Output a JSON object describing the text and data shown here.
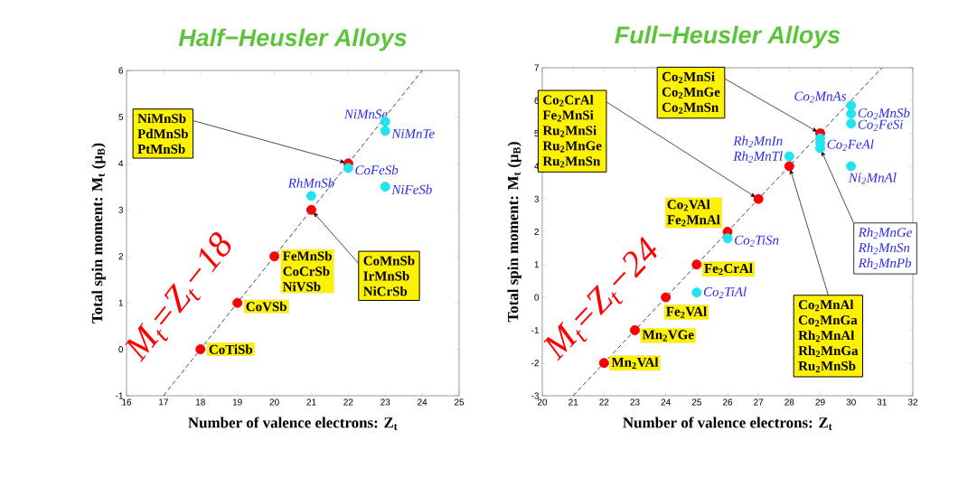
{
  "chart_data": [
    {
      "type": "scatter",
      "title": "Half−Heusler Alloys",
      "xlabel": "Number of valence electrons: Z$_{t}$",
      "ylabel": "Total spin moment: M$_{t}$ (μ$_{B}$)",
      "xlim": [
        16,
        25
      ],
      "ylim": [
        -1,
        6
      ],
      "xticks": [
        16,
        17,
        18,
        19,
        20,
        21,
        22,
        23,
        24,
        25
      ],
      "yticks": [
        -1,
        0,
        1,
        2,
        3,
        4,
        5,
        6
      ],
      "grid": false,
      "marker": "circle",
      "series": [
        {
          "color": "#ff0000",
          "x": [
            18,
            19,
            20,
            21,
            22
          ],
          "values": [
            0,
            1,
            2,
            3,
            4
          ]
        },
        {
          "color": "#22e4ee",
          "x": [
            21,
            22,
            23,
            23,
            23
          ],
          "values": [
            3.3,
            3.9,
            4.9,
            4.7,
            3.5
          ]
        },
        {
          "type": "line",
          "name": "M$_{t}$=Z$_{t}$−18",
          "color": "#444444",
          "line_style": "dashed",
          "marker": "none",
          "x": [
            17,
            24
          ],
          "values": [
            -1,
            6
          ]
        }
      ],
      "annotations": [
        {
          "text": "CoTiSb",
          "x": 18,
          "y": 0
        },
        {
          "text": "CoVSb",
          "x": 19,
          "y": 1
        },
        {
          "text": "FeMnSb",
          "x": 20,
          "y": 2
        },
        {
          "text": "CoCrSb",
          "x": 20,
          "y": 2
        },
        {
          "text": "NiVSb",
          "x": 20,
          "y": 2
        },
        {
          "text": "NiMnSb",
          "x": 22,
          "y": 4
        },
        "PdMnSb",
        "PtMnSb",
        {
          "text": "CoMnSb",
          "x": 21,
          "y": 3
        },
        "IrMnSb",
        "NiCrSb",
        {
          "text": "RhMnSb",
          "x": 21,
          "y": 3.3
        },
        {
          "text": "CoFeSb",
          "x": 22,
          "y": 3.9
        },
        {
          "text": "NiMnSe",
          "x": 23,
          "y": 4.9
        },
        {
          "text": "NiMnTe",
          "x": 23,
          "y": 4.7
        },
        {
          "text": "NiFeSb",
          "x": 23,
          "y": 3.5
        }
      ]
    },
    {
      "type": "scatter",
      "title": "Full−Heusler Alloys",
      "xlabel": "Number of valence electrons: Z$_{t}$",
      "ylabel": "Total spin moment: M$_{t}$ (μ$_{B}$)",
      "xlim": [
        20,
        32
      ],
      "ylim": [
        -3,
        7
      ],
      "xticks": [
        20,
        21,
        22,
        23,
        24,
        25,
        26,
        27,
        28,
        29,
        30,
        31,
        32
      ],
      "yticks": [
        -3,
        -2,
        -1,
        0,
        1,
        2,
        3,
        4,
        5,
        6,
        7
      ],
      "grid": false,
      "marker": "circle",
      "series": [
        {
          "color": "#ff0000",
          "x": [
            22,
            23,
            24,
            25,
            26,
            27,
            28,
            29
          ],
          "values": [
            -2,
            -1,
            0,
            1,
            2,
            3,
            4,
            5
          ]
        },
        {
          "color": "#22e4ee",
          "x": [
            25,
            26,
            28,
            29,
            29,
            29,
            30,
            30,
            30,
            30
          ],
          "values": [
            0.15,
            1.8,
            4.3,
            4.85,
            4.7,
            4.55,
            5.85,
            5.6,
            5.3,
            4.0
          ]
        },
        {
          "type": "line",
          "name": "M$_{t}$=Z$_{t}$−24",
          "color": "#444444",
          "line_style": "dashed",
          "marker": "none",
          "x": [
            21,
            31
          ],
          "values": [
            -3,
            7
          ]
        }
      ],
      "annotations": [
        {
          "text": "Mn$_{2}$VAl",
          "x": 22,
          "y": -2
        },
        {
          "text": "Mn$_{2}$VGe",
          "x": 23,
          "y": -1
        },
        {
          "text": "Fe$_{2}$VAl",
          "x": 24,
          "y": 0
        },
        {
          "text": "Fe$_{2}$CrAl",
          "x": 25,
          "y": 1
        },
        {
          "text": "Co$_{2}$VAl",
          "x": 26,
          "y": 2
        },
        {
          "text": "Fe$_{2}$MnAl",
          "x": 26,
          "y": 2
        },
        {
          "text": "Co$_{2}$CrAl",
          "x": 27,
          "y": 3
        },
        "Fe$_{2}$MnSi",
        "Ru$_{2}$MnSi",
        "Ru$_{2}$MnGe",
        "Ru$_{2}$MnSn",
        {
          "text": "Co$_{2}$MnSi",
          "x": 29,
          "y": 5
        },
        "Co$_{2}$MnGe",
        "Co$_{2}$MnSn",
        {
          "text": "Co$_{2}$MnAl",
          "x": 28,
          "y": 4
        },
        "Co$_{2}$MnGa",
        "Rh$_{2}$MnAl",
        "Rh$_{2}$MnGa",
        "Ru$_{2}$MnSb",
        {
          "text": "Co$_{2}$TiAl",
          "x": 25,
          "y": 0.15
        },
        {
          "text": "Co$_{2}$TiSn",
          "x": 26,
          "y": 1.8
        },
        {
          "text": "Rh$_{2}$MnIn",
          "x": 28,
          "y": 4.3
        },
        {
          "text": "Rh$_{2}$MnTl",
          "x": 28,
          "y": 4.3
        },
        {
          "text": "Co$_{2}$FeAl",
          "x": 29,
          "y": 4.7
        },
        {
          "text": "Rh$_{2}$MnGe",
          "x": 29,
          "y": 4.55
        },
        "Rh$_{2}$MnSn",
        "Rh$_{2}$MnPb",
        {
          "text": "Co$_{2}$MnAs",
          "x": 30,
          "y": 5.85
        },
        {
          "text": "Co$_{2}$MnSb",
          "x": 30,
          "y": 5.6
        },
        {
          "text": "Co$_{2}$FeSi",
          "x": 30,
          "y": 5.3
        },
        {
          "text": "Ni$_{2}$MnAl",
          "x": 30,
          "y": 4.0
        }
      ]
    }
  ]
}
